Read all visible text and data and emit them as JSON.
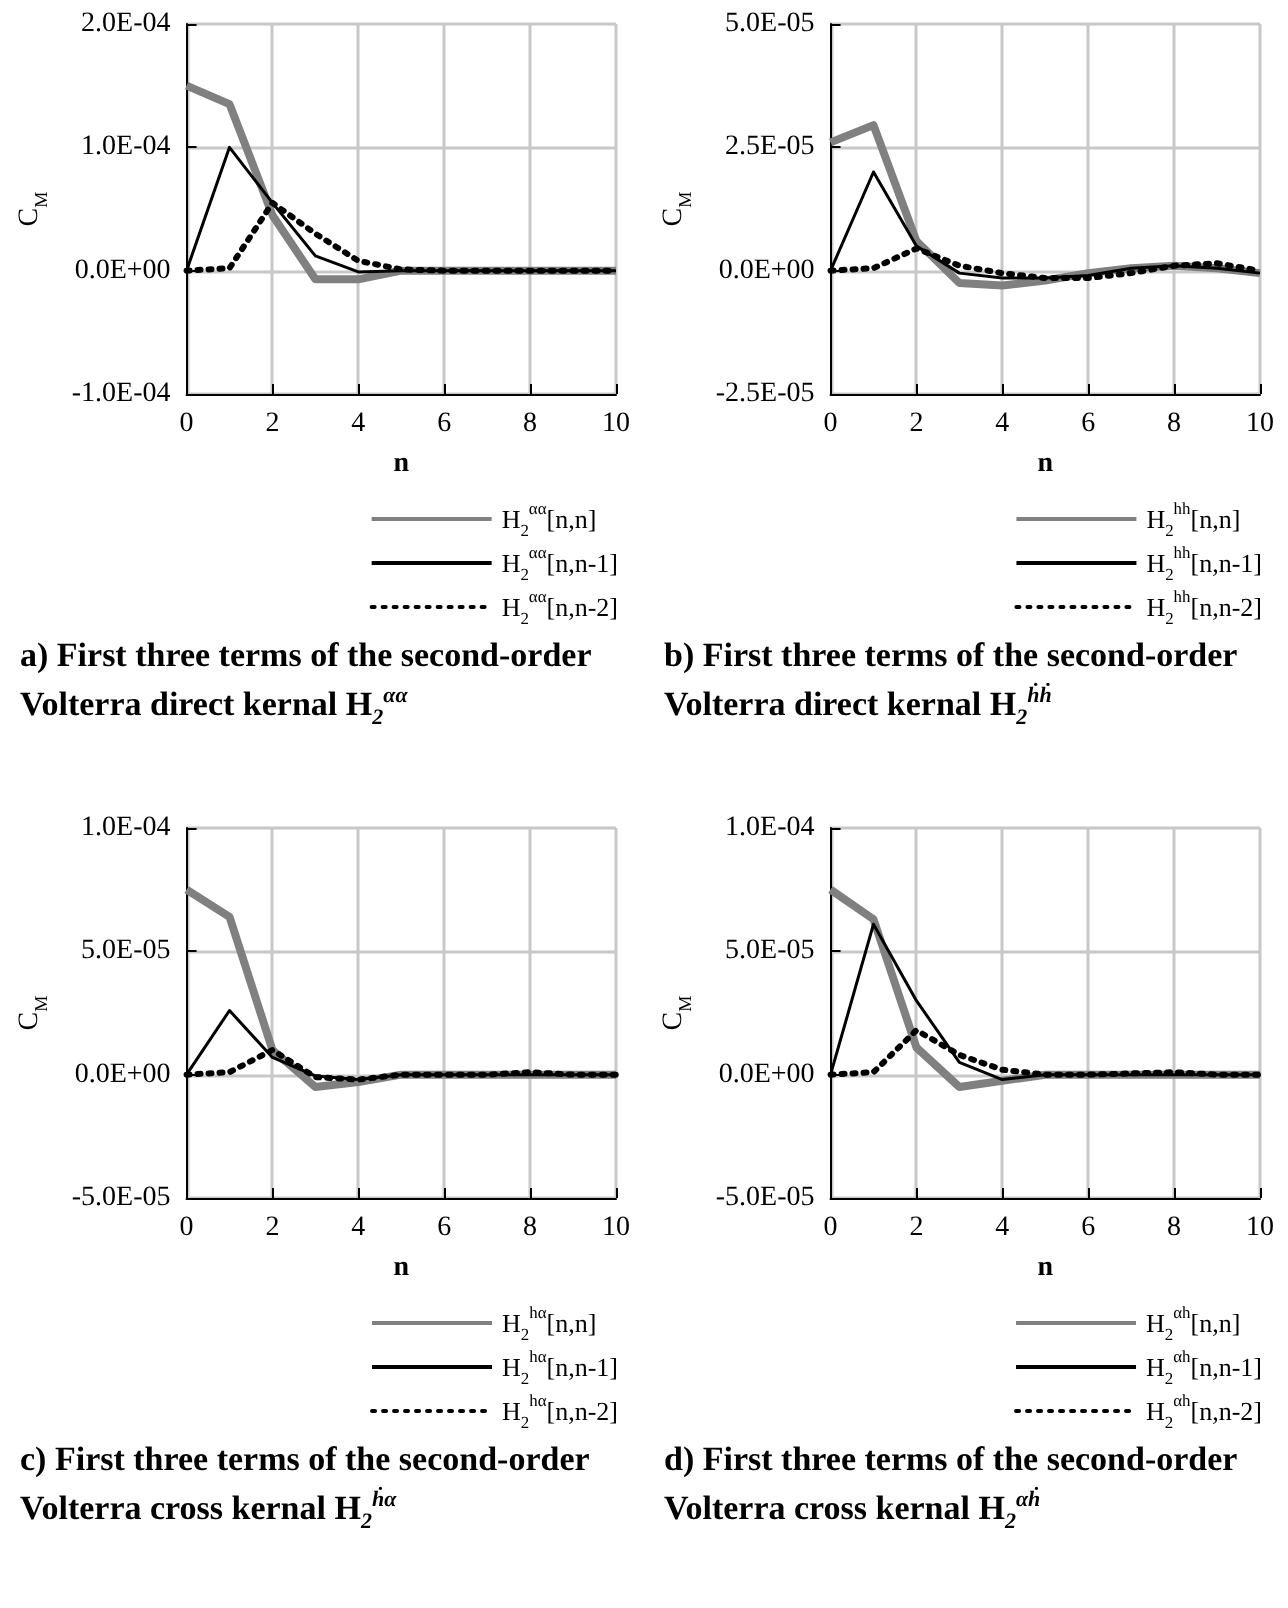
{
  "chart_data": [
    {
      "type": "line",
      "title": "a) First three terms of the second-order Volterra direct kernal H$_{2}$$^{αα}$",
      "xlabel": "n",
      "ylabel": "C$_{M}$",
      "x": [
        0,
        1,
        2,
        3,
        4,
        5,
        6,
        7,
        8,
        9,
        10
      ],
      "xlim": [
        0,
        10
      ],
      "xticks": [
        0,
        2,
        4,
        6,
        8,
        10
      ],
      "ylim": [
        -0.0001,
        0.0002
      ],
      "yticks": [
        {
          "value": -0.0001,
          "label": "-1.0E-04"
        },
        {
          "value": 0,
          "label": "0.0E+00"
        },
        {
          "value": 0.0001,
          "label": "1.0E-04"
        },
        {
          "value": 0.0002,
          "label": "2.0E-04"
        }
      ],
      "grid": true,
      "legend": "bottom right",
      "marker": "none",
      "series": [
        {
          "name": "H$_{2}$$^{αα}$[n,n]",
          "color": "#808080",
          "line_style": "solid",
          "values": [
            0.00015,
            0.000135,
            4.5e-05,
            -7e-06,
            -7e-06,
            0,
            0,
            0,
            0,
            0,
            0
          ]
        },
        {
          "name": "H$_{2}$$^{αα}$[n,n-1]",
          "color": "#000000",
          "line_style": "solid",
          "values": [
            0,
            0.0001,
            5.5e-05,
            1.2e-05,
            -1e-06,
            0,
            0,
            0,
            0,
            0,
            0
          ]
        },
        {
          "name": "H$_{2}$$^{αα}$[n,n-2]",
          "color": "#000000",
          "line_style": "dotted",
          "values": [
            0,
            2e-06,
            5.5e-05,
            3e-05,
            8e-06,
            1e-06,
            0,
            0,
            0,
            0,
            0
          ]
        }
      ]
    },
    {
      "type": "line",
      "title": "b) First three terms of the second-order Volterra direct kernal H$_{2}$$^{ḣḣ}$",
      "xlabel": "n",
      "ylabel": "C$_{M}$",
      "x": [
        0,
        1,
        2,
        3,
        4,
        5,
        6,
        7,
        8,
        9,
        10
      ],
      "xlim": [
        0,
        10
      ],
      "xticks": [
        0,
        2,
        4,
        6,
        8,
        10
      ],
      "ylim": [
        -2.5e-05,
        5e-05
      ],
      "yticks": [
        {
          "value": -2.5e-05,
          "label": "-2.5E-05"
        },
        {
          "value": 0,
          "label": "0.0E+00"
        },
        {
          "value": 2.5e-05,
          "label": "2.5E-05"
        },
        {
          "value": 5e-05,
          "label": "5.0E-05"
        }
      ],
      "grid": true,
      "legend": "bottom right",
      "marker": "none",
      "series": [
        {
          "name": "H$_{2}$$^{hh}$[n,n]",
          "color": "#808080",
          "line_style": "solid",
          "values": [
            2.6e-05,
            2.95e-05,
            6e-06,
            -2.5e-06,
            -3e-06,
            -2e-06,
            -5e-07,
            5e-07,
            1e-06,
            5e-07,
            -5e-07
          ]
        },
        {
          "name": "H$_{2}$$^{hh}$[n,n-1]",
          "color": "#000000",
          "line_style": "solid",
          "values": [
            0,
            2e-05,
            5e-06,
            -5e-07,
            -1.5e-06,
            -1.5e-06,
            -1e-06,
            5e-07,
            1e-06,
            5e-07,
            -5e-07
          ]
        },
        {
          "name": "H$_{2}$$^{hh}$[n,n-2]",
          "color": "#000000",
          "line_style": "dotted",
          "values": [
            0,
            5e-07,
            4.5e-06,
            1e-06,
            -5e-07,
            -1.5e-06,
            -1.5e-06,
            -5e-07,
            1e-06,
            1.5e-06,
            0
          ]
        }
      ]
    },
    {
      "type": "line",
      "title": "c) First three terms of the second-order Volterra cross kernal H$_{2}$$^{ḣα}$",
      "xlabel": "n",
      "ylabel": "C$_{M}$",
      "x": [
        0,
        1,
        2,
        3,
        4,
        5,
        6,
        7,
        8,
        9,
        10
      ],
      "xlim": [
        0,
        10
      ],
      "xticks": [
        0,
        2,
        4,
        6,
        8,
        10
      ],
      "ylim": [
        -5e-05,
        0.0001
      ],
      "yticks": [
        {
          "value": -5e-05,
          "label": "-5.0E-05"
        },
        {
          "value": 0,
          "label": "0.0E+00"
        },
        {
          "value": 5e-05,
          "label": "5.0E-05"
        },
        {
          "value": 0.0001,
          "label": "1.0E-04"
        }
      ],
      "grid": true,
      "legend": "bottom right",
      "marker": "none",
      "series": [
        {
          "name": "H$_{2}$$^{hα}$[n,n]",
          "color": "#808080",
          "line_style": "solid",
          "values": [
            7.5e-05,
            6.4e-05,
            1e-05,
            -5e-06,
            -3e-06,
            0,
            0,
            0,
            0,
            0,
            0
          ]
        },
        {
          "name": "H$_{2}$$^{hα}$[n,n-1]",
          "color": "#000000",
          "line_style": "solid",
          "values": [
            0,
            2.6e-05,
            7e-06,
            -5e-07,
            -2e-06,
            0,
            0,
            0,
            0,
            0,
            0
          ]
        },
        {
          "name": "H$_{2}$$^{hα}$[n,n-2]",
          "color": "#000000",
          "line_style": "dotted",
          "values": [
            0,
            1e-06,
            1e-05,
            -1e-06,
            -2e-06,
            0,
            0,
            0,
            1e-06,
            0,
            0
          ]
        }
      ]
    },
    {
      "type": "line",
      "title": "d) First three terms of the second-order Volterra cross kernal H$_{2}$$^{αḣ}$",
      "xlabel": "n",
      "ylabel": "C$_{M}$",
      "x": [
        0,
        1,
        2,
        3,
        4,
        5,
        6,
        7,
        8,
        9,
        10
      ],
      "xlim": [
        0,
        10
      ],
      "xticks": [
        0,
        2,
        4,
        6,
        8,
        10
      ],
      "ylim": [
        -5e-05,
        0.0001
      ],
      "yticks": [
        {
          "value": -5e-05,
          "label": "-5.0E-05"
        },
        {
          "value": 0,
          "label": "0.0E+00"
        },
        {
          "value": 5e-05,
          "label": "5.0E-05"
        },
        {
          "value": 0.0001,
          "label": "1.0E-04"
        }
      ],
      "grid": true,
      "legend": "bottom right",
      "marker": "none",
      "series": [
        {
          "name": "H$_{2}$$^{αh}$[n,n]",
          "color": "#808080",
          "line_style": "solid",
          "values": [
            7.5e-05,
            6.3e-05,
            1.1e-05,
            -5e-06,
            -2.5e-06,
            0,
            0,
            0,
            0,
            0,
            0
          ]
        },
        {
          "name": "H$_{2}$$^{αh}$[n,n-1]",
          "color": "#000000",
          "line_style": "solid",
          "values": [
            0,
            6.1e-05,
            3e-05,
            5e-06,
            -2e-06,
            0,
            0,
            0,
            0,
            0,
            0
          ]
        },
        {
          "name": "H$_{2}$$^{αh}$[n,n-2]",
          "color": "#000000",
          "line_style": "dotted",
          "values": [
            0,
            1e-06,
            1.8e-05,
            8e-06,
            2e-06,
            0,
            0,
            5e-07,
            1e-06,
            0,
            0
          ]
        }
      ]
    }
  ]
}
